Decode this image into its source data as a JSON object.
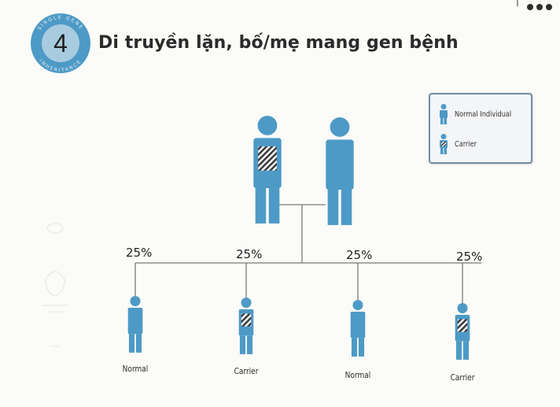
{
  "badge": {
    "number": "4",
    "arc_top": "SINGLE GENE",
    "arc_bottom": "INHERITANCE",
    "color": "#4d9ac6"
  },
  "title": "Di truyền lặn, bố/mẹ mang gen bệnh",
  "legend": {
    "normal": "Normal Individual",
    "carrier": "Carrier"
  },
  "colors": {
    "figure": "#4d9ac6",
    "line": "#7a7a7a"
  },
  "parents": [
    {
      "type": "carrier"
    },
    {
      "type": "normal"
    }
  ],
  "children": [
    {
      "percent": "25%",
      "label": "Normal",
      "type": "normal"
    },
    {
      "percent": "25%",
      "label": "Carrier",
      "type": "carrier"
    },
    {
      "percent": "25%",
      "label": "Normal",
      "type": "normal"
    },
    {
      "percent": "25%",
      "label": "Carrier",
      "type": "carrier"
    }
  ]
}
